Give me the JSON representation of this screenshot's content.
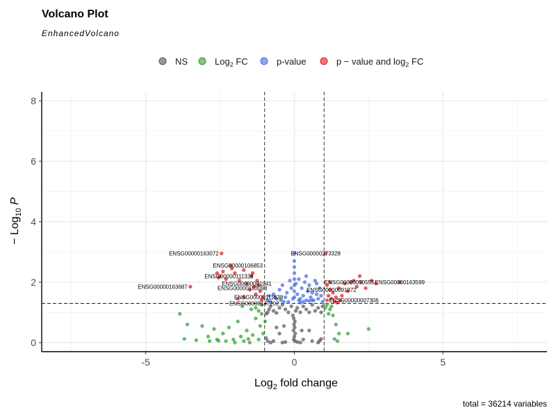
{
  "chart_data": {
    "type": "scatter",
    "title": "Volcano Plot",
    "subtitle": "EnhancedVolcano",
    "caption": "total = 36214 variables",
    "xlabel": "Log2 fold change",
    "ylabel": "-Log10 P",
    "xlim": [
      -8.5,
      8.5
    ],
    "ylim": [
      -0.3,
      8.3
    ],
    "x_ticks": [
      -5,
      0,
      5
    ],
    "x_tick_labels": [
      "-5",
      "0",
      "5"
    ],
    "y_ticks": [
      0,
      2,
      4,
      6,
      8
    ],
    "y_tick_labels": [
      "0",
      "2",
      "4",
      "6",
      "8"
    ],
    "grid": true,
    "legend_position": "top",
    "cutoffs": {
      "fc": 1,
      "p_log10": 1.3
    },
    "legend": [
      {
        "key": "ns",
        "label": "NS",
        "color": "#555555"
      },
      {
        "key": "fc",
        "label": "Log2 FC",
        "color": "#2e9e2e"
      },
      {
        "key": "p",
        "label": "p-value",
        "color": "#4169e1"
      },
      {
        "key": "both",
        "label": "p - value and log2 FC",
        "color": "#e31a1c"
      }
    ],
    "series": [
      {
        "key": "ns",
        "points": [
          [
            -0.95,
            0.95
          ],
          [
            -0.9,
            1.0
          ],
          [
            -0.85,
            1.1
          ],
          [
            -0.8,
            1.2
          ],
          [
            -0.7,
            1.05
          ],
          [
            -0.6,
            0.98
          ],
          [
            -0.5,
            1.15
          ],
          [
            -0.4,
            1.25
          ],
          [
            -0.3,
            1.1
          ],
          [
            -0.2,
            1.0
          ],
          [
            -0.1,
            1.2
          ],
          [
            -0.05,
            0.9
          ],
          [
            0.05,
            1.05
          ],
          [
            0.1,
            1.15
          ],
          [
            0.2,
            1.0
          ],
          [
            0.3,
            1.2
          ],
          [
            0.4,
            1.1
          ],
          [
            0.5,
            1.0
          ],
          [
            0.6,
            1.25
          ],
          [
            0.7,
            1.05
          ],
          [
            0.8,
            1.15
          ],
          [
            0.9,
            1.0
          ],
          [
            0.95,
            1.2
          ],
          [
            -0.02,
            0.8
          ],
          [
            0.02,
            0.7
          ],
          [
            -0.01,
            0.6
          ],
          [
            0.01,
            0.5
          ],
          [
            -0.03,
            0.4
          ],
          [
            0.03,
            0.3
          ],
          [
            0.0,
            0.2
          ],
          [
            -0.02,
            0.1
          ],
          [
            0.02,
            0.05
          ],
          [
            -0.4,
            0.0
          ],
          [
            -0.5,
            0.3
          ],
          [
            -0.7,
            0.05
          ],
          [
            -0.8,
            0.0
          ],
          [
            -0.9,
            0.05
          ],
          [
            -0.95,
            0.15
          ],
          [
            0.2,
            0.0
          ],
          [
            0.3,
            0.1
          ],
          [
            0.5,
            0.4
          ],
          [
            0.6,
            0.05
          ],
          [
            0.8,
            0.0
          ],
          [
            0.9,
            0.12
          ],
          [
            -0.35,
            0.55
          ],
          [
            -0.6,
            0.5
          ],
          [
            0.25,
            0.4
          ],
          [
            -0.3,
            0.02
          ],
          [
            0.1,
            0.02
          ],
          [
            0.85,
            0.06
          ]
        ]
      },
      {
        "key": "fc",
        "points": [
          [
            -3.85,
            0.95
          ],
          [
            -3.6,
            0.6
          ],
          [
            -3.3,
            0.08
          ],
          [
            -3.1,
            0.55
          ],
          [
            -2.9,
            0.2
          ],
          [
            -2.7,
            0.45
          ],
          [
            -2.6,
            0.1
          ],
          [
            -2.4,
            0.3
          ],
          [
            -2.2,
            0.5
          ],
          [
            -2.0,
            0.0
          ],
          [
            -1.9,
            0.7
          ],
          [
            -1.8,
            0.2
          ],
          [
            -1.7,
            0.05
          ],
          [
            -1.6,
            0.4
          ],
          [
            -1.5,
            0.0
          ],
          [
            -1.4,
            0.25
          ],
          [
            -1.3,
            0.8
          ],
          [
            -1.2,
            0.1
          ],
          [
            -1.15,
            0.55
          ],
          [
            -1.1,
            0.95
          ],
          [
            -1.05,
            0.3
          ],
          [
            -1.3,
            1.15
          ],
          [
            -1.2,
            1.05
          ],
          [
            -1.1,
            1.25
          ],
          [
            -2.3,
            0.05
          ],
          [
            -3.7,
            0.12
          ],
          [
            -2.85,
            0.05
          ],
          [
            -1.55,
            0.12
          ],
          [
            -1.75,
            1.2
          ],
          [
            -1.45,
            1.1
          ],
          [
            1.05,
            1.15
          ],
          [
            1.1,
            1.25
          ],
          [
            1.2,
            1.1
          ],
          [
            1.3,
            0.9
          ],
          [
            1.4,
            0.6
          ],
          [
            1.5,
            0.3
          ],
          [
            1.35,
            0.12
          ],
          [
            1.45,
            0.05
          ],
          [
            1.8,
            0.3
          ],
          [
            2.5,
            0.45
          ],
          [
            1.25,
            1.2
          ],
          [
            1.15,
            0.95
          ],
          [
            -0.98,
            0.7
          ],
          [
            -2.05,
            0.1
          ],
          [
            -2.55,
            0.06
          ]
        ]
      },
      {
        "key": "p",
        "points": [
          [
            -0.9,
            1.4
          ],
          [
            -0.85,
            1.55
          ],
          [
            -0.8,
            1.35
          ],
          [
            -0.7,
            1.6
          ],
          [
            -0.6,
            1.45
          ],
          [
            -0.5,
            1.75
          ],
          [
            -0.45,
            1.4
          ],
          [
            -0.4,
            1.9
          ],
          [
            -0.3,
            1.5
          ],
          [
            -0.25,
            1.65
          ],
          [
            -0.2,
            1.35
          ],
          [
            -0.1,
            1.8
          ],
          [
            -0.05,
            1.45
          ],
          [
            0.0,
            2.95
          ],
          [
            0.0,
            2.7
          ],
          [
            0.0,
            2.5
          ],
          [
            0.0,
            2.3
          ],
          [
            0.0,
            2.1
          ],
          [
            0.0,
            1.9
          ],
          [
            0.0,
            1.7
          ],
          [
            0.0,
            1.5
          ],
          [
            0.05,
            1.95
          ],
          [
            0.1,
            1.6
          ],
          [
            0.15,
            2.1
          ],
          [
            0.2,
            1.45
          ],
          [
            0.25,
            1.8
          ],
          [
            0.3,
            1.55
          ],
          [
            0.35,
            2.0
          ],
          [
            0.4,
            1.4
          ],
          [
            0.45,
            1.7
          ],
          [
            0.5,
            1.9
          ],
          [
            0.55,
            1.5
          ],
          [
            0.6,
            1.65
          ],
          [
            0.65,
            1.4
          ],
          [
            0.7,
            2.05
          ],
          [
            0.75,
            1.6
          ],
          [
            0.8,
            1.45
          ],
          [
            0.85,
            1.8
          ],
          [
            0.9,
            1.55
          ],
          [
            0.95,
            1.35
          ],
          [
            -0.15,
            2.05
          ],
          [
            0.4,
            2.2
          ],
          [
            0.3,
            1.35
          ],
          [
            0.6,
            1.4
          ],
          [
            -0.35,
            1.35
          ],
          [
            0.2,
            1.32
          ],
          [
            0.5,
            1.38
          ],
          [
            -0.65,
            1.5
          ],
          [
            0.15,
            1.4
          ],
          [
            0.75,
            1.95
          ]
        ]
      },
      {
        "key": "both",
        "points": [
          [
            -2.45,
            2.95
          ],
          [
            -2.4,
            2.35
          ],
          [
            -2.3,
            2.1
          ],
          [
            -2.15,
            2.55
          ],
          [
            -2.0,
            2.3
          ],
          [
            -1.85,
            2.05
          ],
          [
            -1.7,
            2.4
          ],
          [
            -1.6,
            1.95
          ],
          [
            -1.45,
            2.2
          ],
          [
            -1.35,
            1.85
          ],
          [
            -1.25,
            2.05
          ],
          [
            -1.15,
            1.7
          ],
          [
            -1.05,
            1.5
          ],
          [
            -1.1,
            1.4
          ],
          [
            -1.3,
            1.6
          ],
          [
            -1.5,
            1.75
          ],
          [
            -1.7,
            1.5
          ],
          [
            -1.9,
            1.45
          ],
          [
            -3.5,
            1.85
          ],
          [
            -2.6,
            2.3
          ],
          [
            -2.5,
            2.2
          ],
          [
            -2.55,
            2.15
          ],
          [
            1.05,
            2.95
          ],
          [
            1.1,
            1.4
          ],
          [
            1.15,
            1.55
          ],
          [
            1.2,
            1.75
          ],
          [
            1.25,
            1.45
          ],
          [
            1.3,
            1.65
          ],
          [
            1.4,
            1.5
          ],
          [
            1.5,
            1.8
          ],
          [
            1.6,
            1.55
          ],
          [
            1.7,
            1.95
          ],
          [
            1.8,
            1.7
          ],
          [
            1.9,
            2.0
          ],
          [
            2.0,
            2.05
          ],
          [
            2.1,
            1.85
          ],
          [
            2.25,
            2.0
          ],
          [
            2.4,
            1.8
          ],
          [
            2.6,
            2.05
          ],
          [
            2.75,
            1.95
          ],
          [
            3.55,
            2.0
          ],
          [
            1.35,
            1.35
          ],
          [
            1.45,
            1.32
          ],
          [
            1.55,
            1.4
          ],
          [
            1.1,
            1.9
          ],
          [
            1.2,
            2.0
          ],
          [
            2.2,
            2.2
          ],
          [
            -1.2,
            1.9
          ],
          [
            -1.4,
            2.3
          ],
          [
            -2.1,
            2.45
          ]
        ]
      }
    ],
    "labels": [
      {
        "gene": "ENSG00000163072",
        "x": -2.45,
        "y": 2.95,
        "anchor": "end",
        "dx": -4
      },
      {
        "gene": "ENSG00000106853",
        "x": -1.9,
        "y": 2.55,
        "anchor": "middle",
        "dx": 0
      },
      {
        "gene": "ENSG00000111328",
        "x": -2.2,
        "y": 2.2,
        "anchor": "middle",
        "dx": 0
      },
      {
        "gene": "ENSG00000081041",
        "x": -1.6,
        "y": 1.95,
        "anchor": "middle",
        "dx": 0
      },
      {
        "gene": "ENSG00000163687",
        "x": -3.5,
        "y": 1.85,
        "anchor": "end",
        "dx": -4
      },
      {
        "gene": "ENSG00000183093",
        "x": -1.75,
        "y": 1.8,
        "anchor": "middle",
        "dx": 0
      },
      {
        "gene": "ENSG00000111638",
        "x": -1.2,
        "y": 1.5,
        "anchor": "middle",
        "dx": 0
      },
      {
        "gene": "ENSG00000147202",
        "x": -1.35,
        "y": 1.3,
        "anchor": "middle",
        "dx": 0
      },
      {
        "gene": "ENSG00000273328",
        "x": 1.05,
        "y": 2.95,
        "anchor": "start",
        "dx": -50
      },
      {
        "gene": "ENSG00000050555",
        "x": 1.85,
        "y": 2.0,
        "anchor": "middle",
        "dx": 0
      },
      {
        "gene": "ENSG00000163599",
        "x": 3.55,
        "y": 2.0,
        "anchor": "middle",
        "dx": 0
      },
      {
        "gene": "ENSG00000091972",
        "x": 1.25,
        "y": 1.75,
        "anchor": "middle",
        "dx": 0
      },
      {
        "gene": "ENSG00000007306",
        "x": 2.0,
        "y": 1.4,
        "anchor": "middle",
        "dx": 0
      }
    ]
  }
}
